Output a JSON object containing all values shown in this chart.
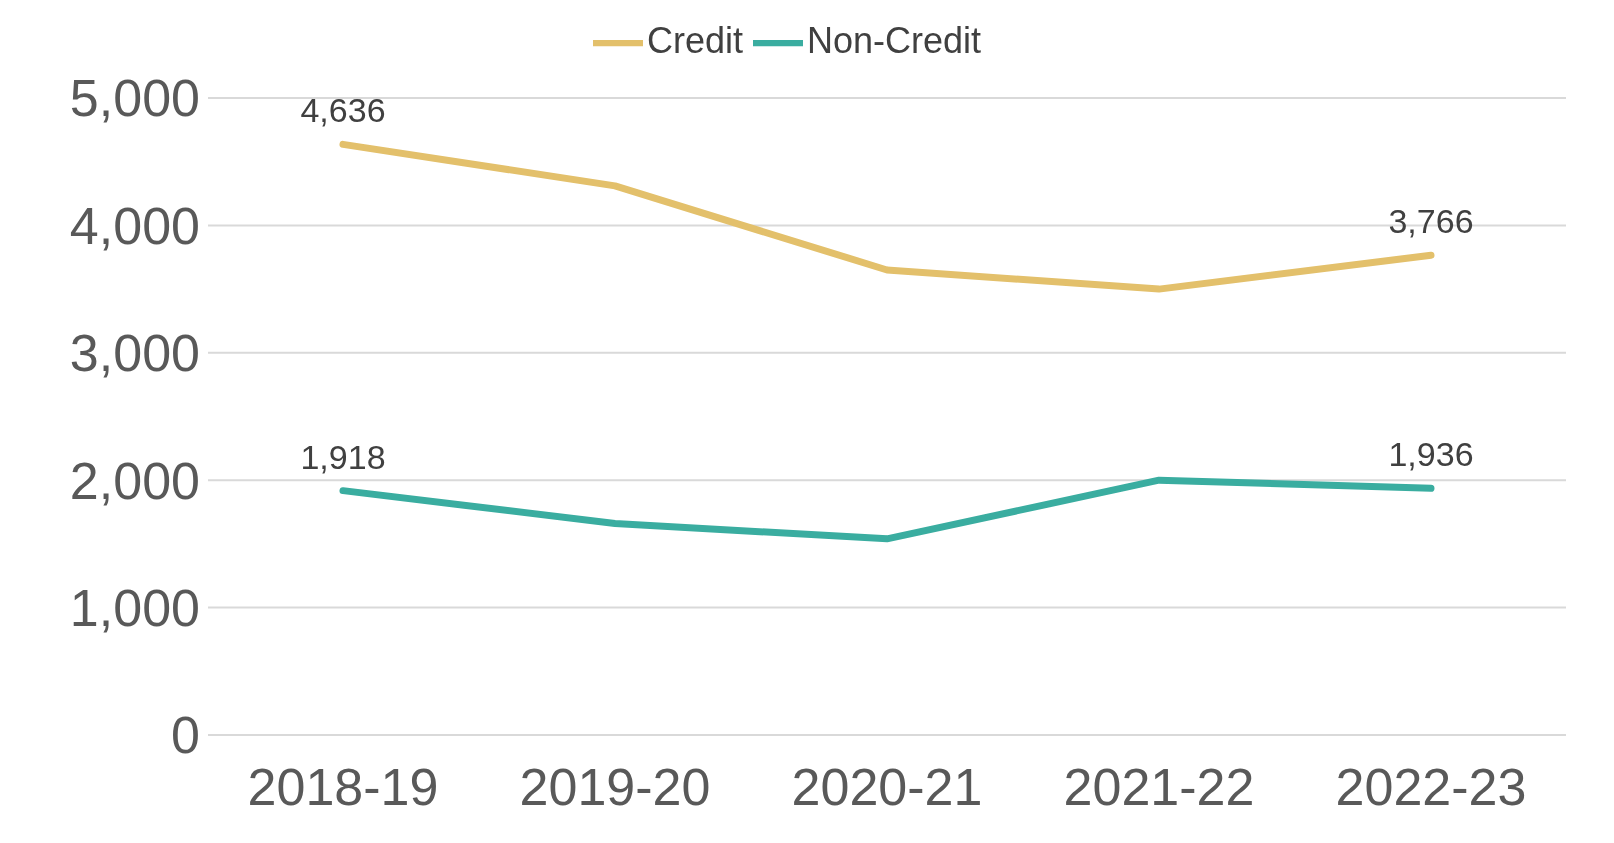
{
  "chart_data": {
    "type": "line",
    "categories": [
      "2018-19",
      "2019-20",
      "2020-21",
      "2021-22",
      "2022-23"
    ],
    "series": [
      {
        "name": "Credit",
        "color": "#e3c06b",
        "values": [
          4636,
          4310,
          3650,
          3500,
          3766
        ],
        "value_labels": [
          "4,636",
          null,
          null,
          null,
          "3,766"
        ]
      },
      {
        "name": "Non-Credit",
        "color": "#3aada0",
        "values": [
          1918,
          1660,
          1540,
          2000,
          1936
        ],
        "value_labels": [
          "1,918",
          null,
          null,
          null,
          "1,936"
        ]
      }
    ],
    "ylim": [
      0,
      5000
    ],
    "yticks": [
      0,
      {
        "value": 1000,
        "label": "1,000"
      },
      {
        "value": 2000,
        "label": "2,000"
      },
      {
        "value": 3000,
        "label": "3,000"
      },
      {
        "value": 4000,
        "label": "4,000"
      },
      {
        "value": 5000,
        "label": "5,000"
      }
    ],
    "grid": "y",
    "legend": "top",
    "marker": "none",
    "line_style": "solid"
  }
}
